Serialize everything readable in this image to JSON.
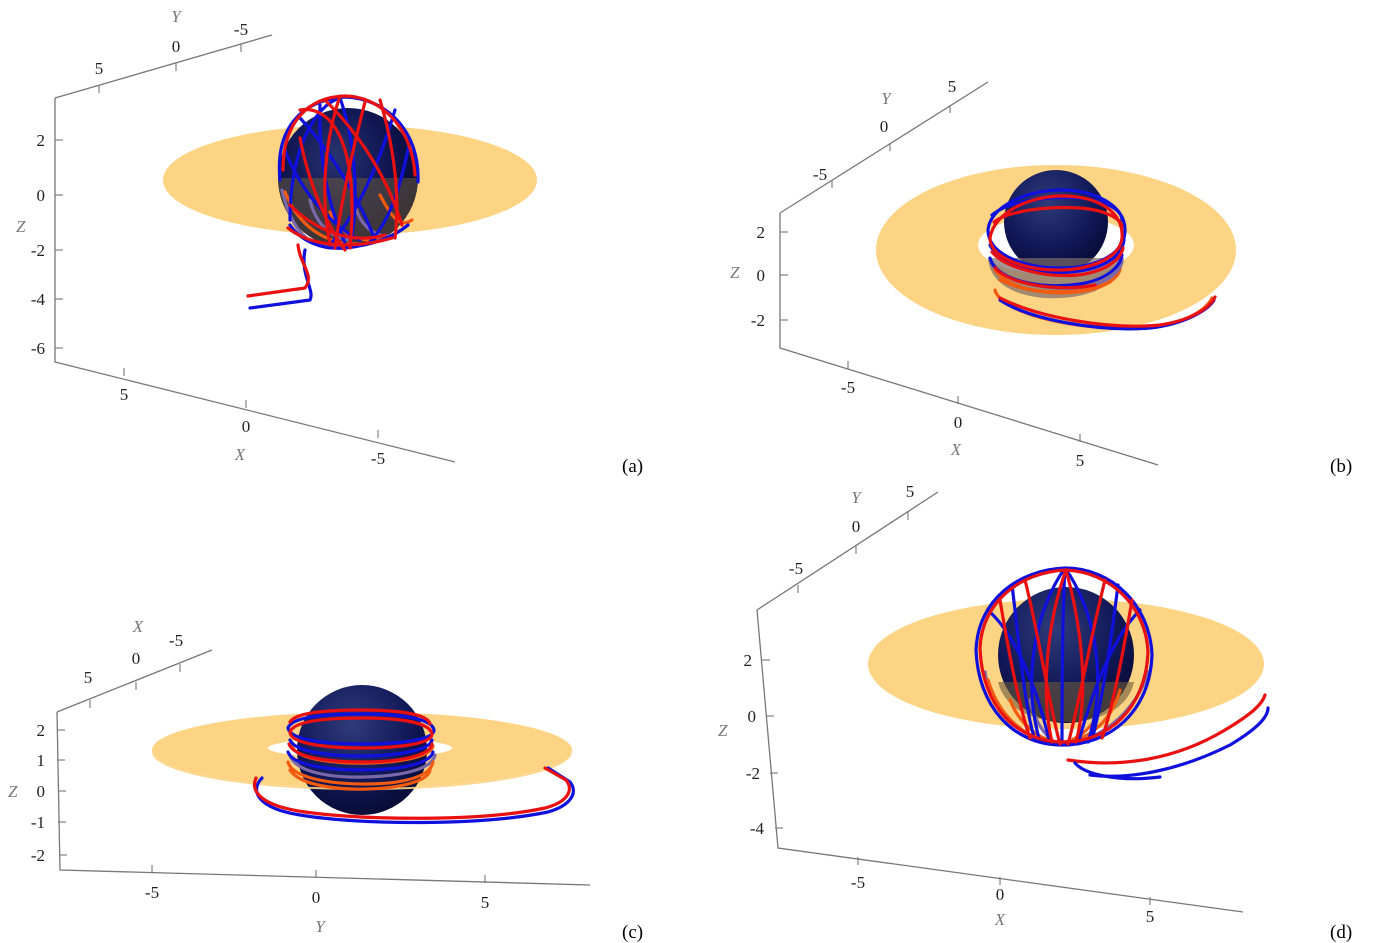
{
  "panels": [
    {
      "id": "a",
      "label": "(a)",
      "axes": {
        "x": {
          "name": "X",
          "ticks": [
            "5",
            "0",
            "-5"
          ]
        },
        "y": {
          "name": "Y",
          "ticks": [
            "5",
            "0",
            "-5"
          ]
        },
        "z": {
          "name": "Z",
          "ticks": [
            "2",
            "0",
            "-2",
            "-4",
            "-6"
          ]
        }
      }
    },
    {
      "id": "b",
      "label": "(b)",
      "axes": {
        "x": {
          "name": "X",
          "ticks": [
            "-5",
            "0",
            "5"
          ]
        },
        "y": {
          "name": "Y",
          "ticks": [
            "-5",
            "0",
            "5"
          ]
        },
        "z": {
          "name": "Z",
          "ticks": [
            "2",
            "0",
            "-2"
          ]
        }
      }
    },
    {
      "id": "c",
      "label": "(c)",
      "axes": {
        "x": {
          "name": "X",
          "ticks": [
            "5",
            "0",
            "-5"
          ]
        },
        "y": {
          "name": "Y",
          "ticks": [
            "-5",
            "0",
            "5"
          ]
        },
        "z": {
          "name": "Z",
          "ticks": [
            "2",
            "1",
            "0",
            "-1",
            "-2"
          ]
        }
      }
    },
    {
      "id": "d",
      "label": "(d)",
      "axes": {
        "x": {
          "name": "X",
          "ticks": [
            "-5",
            "0",
            "5"
          ]
        },
        "y": {
          "name": "Y",
          "ticks": [
            "-5",
            "0",
            "5"
          ]
        },
        "z": {
          "name": "Z",
          "ticks": [
            "2",
            "0",
            "-2",
            "-4"
          ]
        }
      }
    }
  ],
  "colors": {
    "accretion_disk": "#fdd384",
    "black_hole": "#0b1148",
    "trajectory_1": "#e81010",
    "trajectory_2": "#1010dd"
  }
}
